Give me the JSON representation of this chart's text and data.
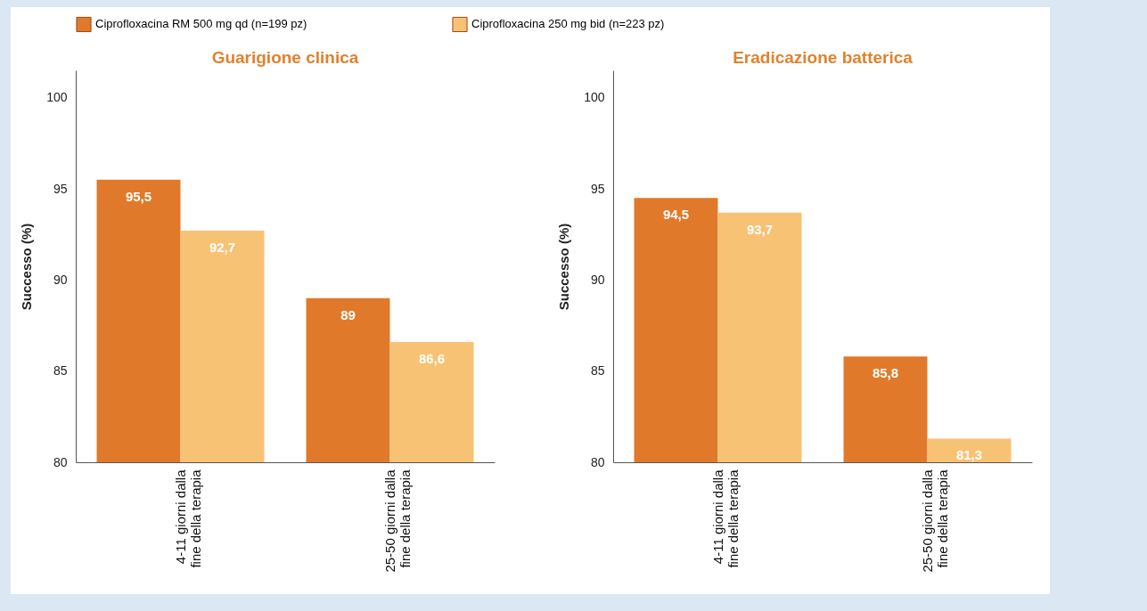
{
  "chart_data": [
    {
      "type": "bar",
      "title": "Guarigione clinica",
      "ylabel": "Successo (%)",
      "categories": [
        "4-11 giorni dalla fine della terapia",
        "25-50 giorni dalla fine della terapia"
      ],
      "series": [
        {
          "name": "Ciprofloxacina RM 500 mg qd (n=199 pz)",
          "color": "#e07a2a",
          "values": [
            95.5,
            89
          ],
          "value_labels": [
            "95,5",
            "89"
          ]
        },
        {
          "name": "Ciprofloxacina 250 mg bid (n=223 pz)",
          "color": "#f8c274",
          "values": [
            92.7,
            86.6
          ],
          "value_labels": [
            "92,7",
            "86,6"
          ]
        }
      ],
      "ylim": [
        80,
        101.5
      ],
      "yticks": [
        80,
        85,
        90,
        95,
        100
      ],
      "legend": "top",
      "grid": false
    },
    {
      "type": "bar",
      "title": "Eradicazione batterica",
      "ylabel": "Successo (%)",
      "categories": [
        "4-11 giorni dalla fine della terapia",
        "25-50 giorni dalla fine della terapia"
      ],
      "series": [
        {
          "name": "Ciprofloxacina RM 500 mg qd (n=199 pz)",
          "color": "#e07a2a",
          "values": [
            94.5,
            85.8
          ],
          "value_labels": [
            "94,5",
            "85,8"
          ]
        },
        {
          "name": "Ciprofloxacina 250 mg bid (n=223 pz)",
          "color": "#f8c274",
          "values": [
            93.7,
            81.3
          ],
          "value_labels": [
            "93,7",
            "81,3"
          ]
        }
      ],
      "ylim": [
        80,
        101.5
      ],
      "yticks": [
        80,
        85,
        90,
        95,
        100
      ],
      "legend": "top",
      "grid": false
    }
  ]
}
